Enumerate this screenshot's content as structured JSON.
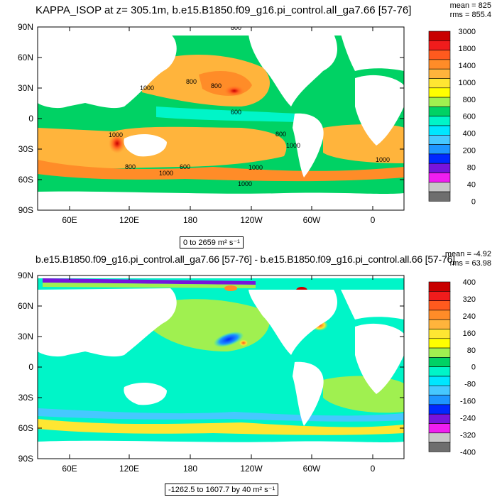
{
  "chart_data": [
    {
      "type": "heatmap",
      "title": "KAPPA_ISOP at z= 305.1m, b.e15.B1850.f09_g16.pi_control.all_ga7.66 [57-76]",
      "stats": {
        "mean": "mean = 825",
        "rms": "rms = 855.4"
      },
      "range_label": "0 to 2659 m² s⁻¹",
      "x_ticks": [
        "60E",
        "120E",
        "180",
        "120W",
        "60W",
        "0"
      ],
      "y_ticks": [
        "90N",
        "60N",
        "30N",
        "0",
        "30S",
        "60S",
        "90S"
      ],
      "colorbar_levels": [
        "3000",
        "1800",
        "1400",
        "1000",
        "800",
        "600",
        "400",
        "200",
        "80",
        "40",
        "0"
      ],
      "colorbar_colors": [
        "#c80000",
        "#f01c1c",
        "#ff5a1e",
        "#ff8c28",
        "#ffb43c",
        "#ffe632",
        "#ffff00",
        "#a0f050",
        "#00d264",
        "#00f5c8",
        "#00e6ff",
        "#46c8ff",
        "#1e96ff",
        "#0028ff",
        "#7814dc",
        "#f01ef0",
        "#c8c8c8",
        "#6e6e6e"
      ],
      "contour_labels": [
        "800",
        "1000",
        "800",
        "800",
        "600",
        "1000",
        "800",
        "1000",
        "1000",
        "800",
        "1000",
        "600",
        "1000",
        "1000"
      ]
    },
    {
      "type": "heatmap",
      "title": "b.e15.B1850.f09_g16.pi_control.all_ga7.66 [57-76] - b.e15.B1850.f09_g16.pi_control.all.66 [57-76]",
      "stats": {
        "mean": "mean = -4.92",
        "rms": "rms = 63.98"
      },
      "range_label": "-1262.5 to 1607.7 by 40 m² s⁻¹",
      "x_ticks": [
        "60E",
        "120E",
        "180",
        "120W",
        "60W",
        "0"
      ],
      "y_ticks": [
        "90N",
        "60N",
        "30N",
        "0",
        "30S",
        "60S",
        "90S"
      ],
      "colorbar_levels": [
        "400",
        "320",
        "240",
        "160",
        "80",
        "0",
        "-80",
        "-160",
        "-240",
        "-320",
        "-400"
      ],
      "colorbar_colors": [
        "#c80000",
        "#f01c1c",
        "#ff5a1e",
        "#ff8c28",
        "#ffb43c",
        "#ffe632",
        "#ffff00",
        "#a0f050",
        "#00d264",
        "#00f5c8",
        "#00e6ff",
        "#46c8ff",
        "#1e96ff",
        "#0028ff",
        "#7814dc",
        "#f01ef0",
        "#c8c8c8",
        "#6e6e6e"
      ]
    }
  ]
}
